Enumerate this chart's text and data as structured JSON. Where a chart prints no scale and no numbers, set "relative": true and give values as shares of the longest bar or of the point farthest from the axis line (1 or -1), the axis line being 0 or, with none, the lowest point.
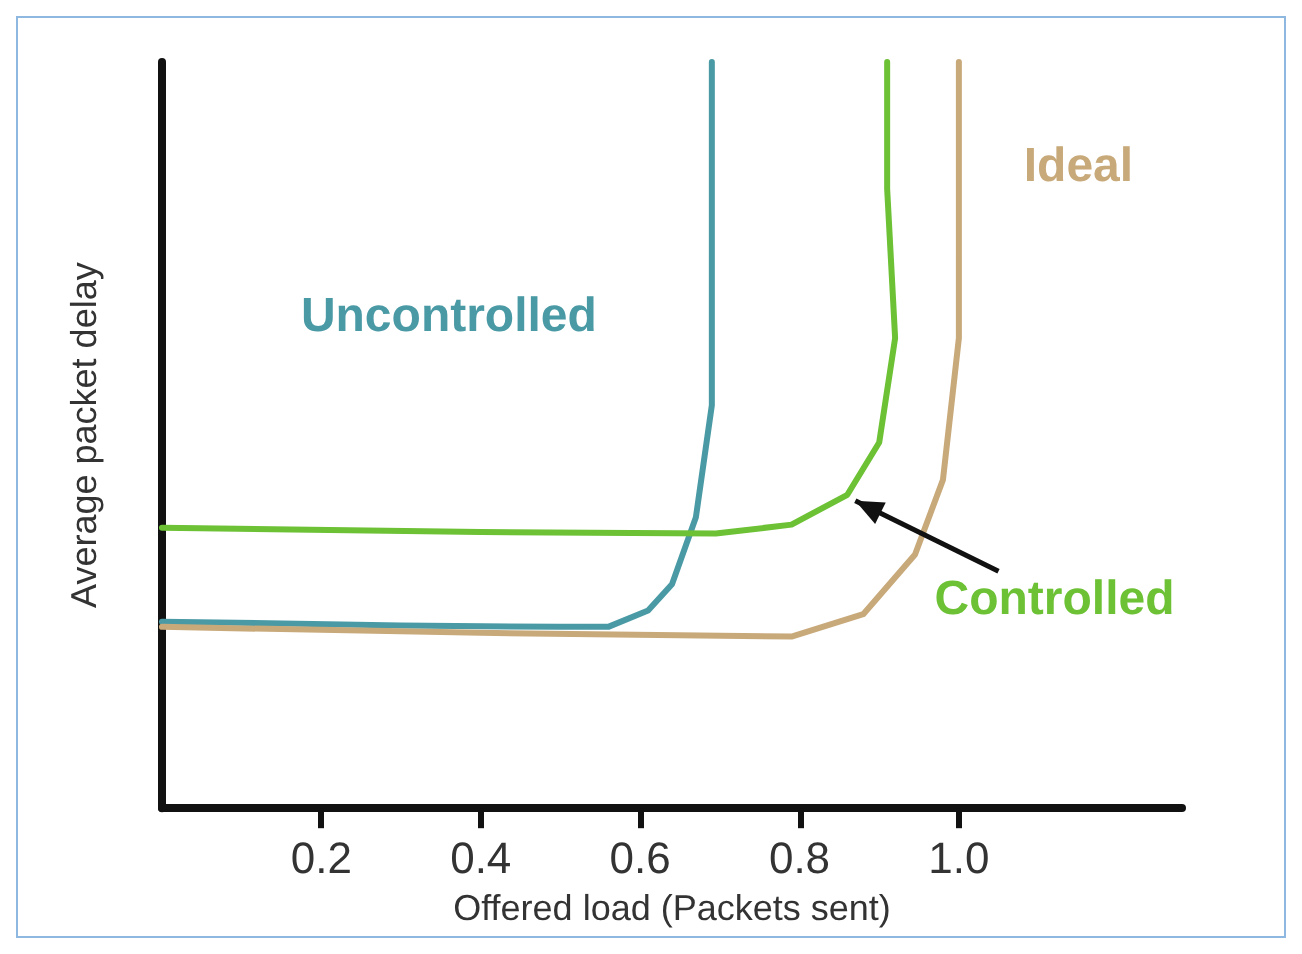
{
  "chart_data": {
    "type": "line",
    "xlabel": "Offered load (Packets sent)",
    "ylabel": "Average packet delay",
    "relative": true,
    "xlim": [
      0,
      1.28
    ],
    "xticks": [
      0.2,
      0.4,
      0.6,
      {
        "value": 1,
        "label": "1.0"
      },
      0.8
    ],
    "grid": false,
    "legend": false,
    "marker": "none",
    "line_style": "solid",
    "series": [
      {
        "name": "Uncontrolled",
        "color": "#4a9aa5",
        "x": [
          0,
          0.3,
          0.5,
          0.56,
          0.61,
          0.64,
          0.67,
          0.69,
          0.69,
          0.69
        ],
        "values": [
          0.25,
          0.245,
          0.243,
          0.243,
          0.265,
          0.3,
          0.39,
          0.54,
          0.73,
          1.0
        ]
      },
      {
        "name": "Ideal",
        "color": "#c8a97a",
        "x": [
          0,
          0.4,
          0.79,
          0.88,
          0.945,
          0.98,
          1.0,
          1.0
        ],
        "values": [
          0.243,
          0.235,
          0.23,
          0.26,
          0.34,
          0.44,
          0.63,
          1.0
        ]
      },
      {
        "name": "Controlled",
        "color": "#6cc134",
        "x": [
          0,
          0.4,
          0.695,
          0.79,
          0.86,
          0.9,
          0.92,
          0.91,
          0.91
        ],
        "values": [
          0.376,
          0.37,
          0.368,
          0.38,
          0.42,
          0.49,
          0.63,
          0.83,
          1.0
        ]
      }
    ]
  }
}
